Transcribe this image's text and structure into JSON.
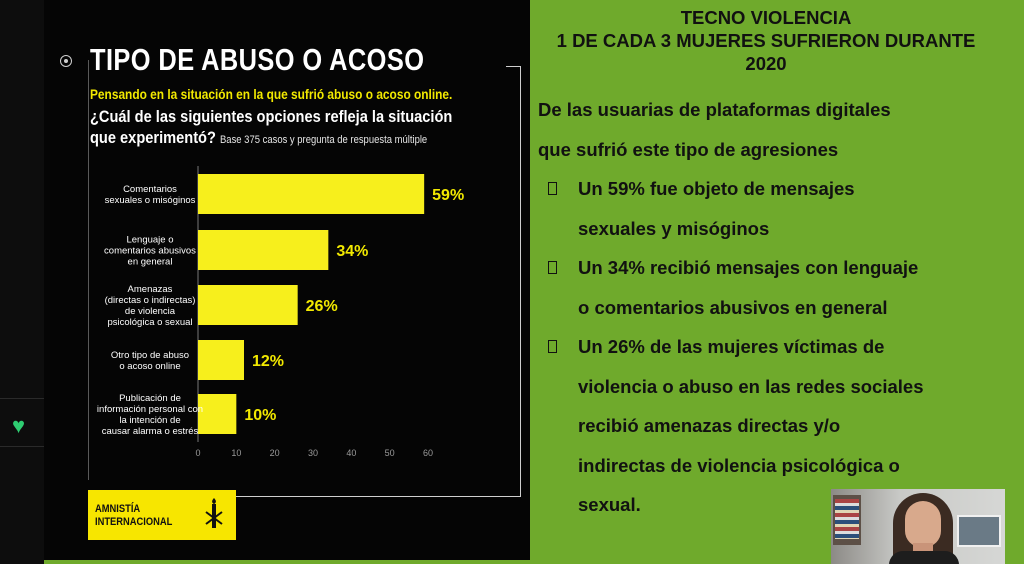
{
  "image": {
    "title": "TIPO DE ABUSO O ACOSO",
    "subtitle": "Pensando en la situación en la que sufrió abuso o acoso online.",
    "question_line1": "¿Cuál de las siguientes opciones refleja la situación",
    "question_line2": "que experimentó?",
    "base_note": "Base 375 casos y pregunta de respuesta múltiple",
    "logo_line1": "AMNISTÍA",
    "logo_line2": "INTERNACIONAL"
  },
  "chart_data": {
    "type": "bar",
    "orientation": "horizontal",
    "categories": [
      [
        "Comentarios",
        "sexuales o misóginos"
      ],
      [
        "Lenguaje o",
        "comentarios abusivos",
        "en general"
      ],
      [
        "Amenazas",
        "(directas o indirectas)",
        "de violencia",
        "psicológica o sexual"
      ],
      [
        "Otro tipo de abuso",
        "o acoso online"
      ],
      [
        "Publicación de",
        "información personal con",
        "la intención de",
        "causar alarma o estrés"
      ]
    ],
    "values": [
      59,
      34,
      26,
      12,
      10
    ],
    "data_labels": [
      "59%",
      "34%",
      "26%",
      "12%",
      "10%"
    ],
    "xticks": [
      "0",
      "10",
      "20",
      "30",
      "40",
      "50",
      "60"
    ],
    "xlim": [
      0,
      60
    ],
    "bar_color": "#f7ef1c",
    "label_color": "#f2e900"
  },
  "slide": {
    "title_lines": [
      "TECNO VIOLENCIA",
      "1 DE CADA 3 MUJERES SUFRIERON DURANTE",
      "2020"
    ],
    "intro_lines": [
      "De las usuarias de plataformas digitales",
      "que sufrió este tipo de agresiones"
    ],
    "bullets": [
      {
        "lines": [
          "Un 59% fue objeto de mensajes",
          "sexuales y misóginos"
        ]
      },
      {
        "lines": [
          "Un 34% recibió mensajes con lenguaje",
          "o comentarios abusivos en general"
        ]
      },
      {
        "lines": [
          "Un 26% de las mujeres víctimas de",
          "violencia o abuso en las redes sociales",
          "recibió amenazas directas y/o",
          "indirectas de violencia psicológica o",
          "sexual."
        ]
      }
    ]
  },
  "colors": {
    "slide_bg": "#6faa2c",
    "image_bg": "#050505",
    "accent_yellow": "#f7ef1c",
    "heart": "#2ecc71"
  }
}
